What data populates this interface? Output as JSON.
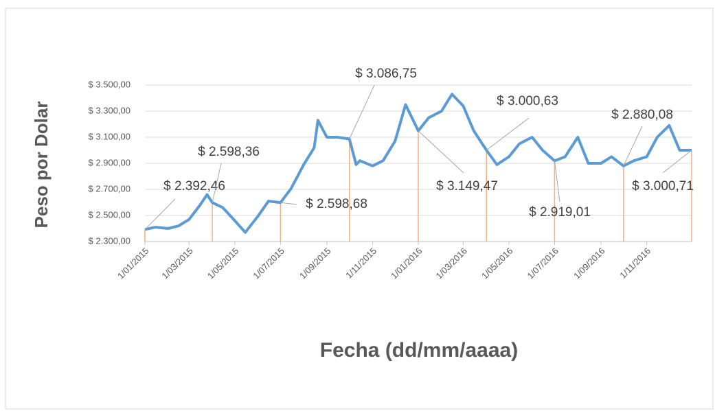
{
  "chart_data": {
    "type": "line",
    "x_label": "Fecha (dd/mm/aaaa)",
    "y_label": "Peso por Dolar",
    "x": [
      "1/01/2015",
      "15/01/2015",
      "1/02/2015",
      "15/02/2015",
      "1/03/2015",
      "15/03/2015",
      "25/03/2015",
      "1/04/2015",
      "15/04/2015",
      "1/05/2015",
      "15/05/2015",
      "1/06/2015",
      "15/06/2015",
      "1/07/2015",
      "15/07/2015",
      "1/08/2015",
      "15/08/2015",
      "20/08/2015",
      "1/09/2015",
      "15/09/2015",
      "1/10/2015",
      "10/10/2015",
      "15/10/2015",
      "1/11/2015",
      "15/11/2015",
      "1/12/2015",
      "15/12/2015",
      "1/01/2016",
      "15/01/2016",
      "1/02/2016",
      "15/02/2016",
      "1/03/2016",
      "15/03/2016",
      "1/04/2016",
      "15/04/2016",
      "1/05/2016",
      "15/05/2016",
      "1/06/2016",
      "15/06/2016",
      "1/07/2016",
      "15/07/2016",
      "1/08/2016",
      "15/08/2016",
      "1/09/2016",
      "15/09/2016",
      "1/10/2016",
      "15/10/2016",
      "1/11/2016",
      "15/11/2016",
      "1/12/2016",
      "15/12/2016",
      "31/12/2016"
    ],
    "series": [
      {
        "color": "#5b9bd5",
        "values": [
          2392.46,
          2410,
          2400,
          2420,
          2470,
          2575,
          2660,
          2598.36,
          2560,
          2460,
          2370,
          2495,
          2610,
          2598.68,
          2705,
          2890,
          3020,
          3230,
          3100,
          3100,
          3086.75,
          2890,
          2920,
          2880,
          2920,
          3070,
          3350,
          3149.47,
          3250,
          3300,
          3430,
          3340,
          3150,
          3000.63,
          2890,
          2950,
          3050,
          3100,
          3000,
          2919.01,
          2950,
          3100,
          2900,
          2900,
          2950,
          2880.08,
          2920,
          2950,
          3100,
          3190,
          3000,
          3000.71
        ]
      }
    ],
    "xlim": [
      "1/01/2015",
      "31/12/2016"
    ],
    "xticks": [
      "1/01/2015",
      "1/03/2015",
      "1/05/2015",
      "1/07/2015",
      "1/09/2015",
      "1/11/2015",
      "1/01/2016",
      "1/03/2016",
      "1/05/2016",
      "1/07/2016",
      "1/09/2016",
      "1/11/2016"
    ],
    "ylim": [
      2300,
      3500
    ],
    "yticks": [
      {
        "value": 2300,
        "label": "$ 2.300,00"
      },
      {
        "value": 2500,
        "label": "$ 2.500,00"
      },
      {
        "value": 2700,
        "label": "$ 2.700,00"
      },
      {
        "value": 2900,
        "label": "$ 2.900,00"
      },
      {
        "value": 3100,
        "label": "$ 3.100,00"
      },
      {
        "value": 3300,
        "label": "$ 3.300,00"
      },
      {
        "value": 3500,
        "label": "$ 3.500,00"
      }
    ],
    "grid": true,
    "annotation_color": "#f4b183",
    "annotations": [
      {
        "date": "1/01/2015",
        "value": 2392.46,
        "label": "$ 2.392,46"
      },
      {
        "date": "1/04/2015",
        "value": 2598.36,
        "label": "$ 2.598,36"
      },
      {
        "date": "1/07/2015",
        "value": 2598.68,
        "label": "$ 2.598,68"
      },
      {
        "date": "1/10/2015",
        "value": 3086.75,
        "label": "$ 3.086,75"
      },
      {
        "date": "1/01/2016",
        "value": 3149.47,
        "label": "$ 3.149,47"
      },
      {
        "date": "1/04/2016",
        "value": 3000.63,
        "label": "$ 3.000,63"
      },
      {
        "date": "1/07/2016",
        "value": 2919.01,
        "label": "$ 2.919,01"
      },
      {
        "date": "1/10/2016",
        "value": 2880.08,
        "label": "$ 2.880,08"
      },
      {
        "date": "31/12/2016",
        "value": 3000.71,
        "label": "$ 3.000,71"
      }
    ]
  }
}
